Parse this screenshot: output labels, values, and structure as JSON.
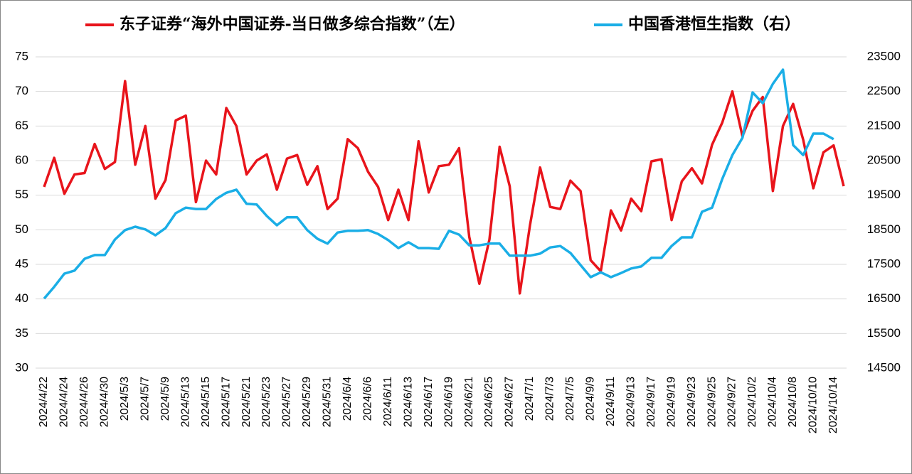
{
  "chart_data": {
    "type": "line",
    "categories": [
      "2024/4/22",
      null,
      "2024/4/24",
      null,
      "2024/4/26",
      null,
      "2024/4/30",
      null,
      "2024/5/3",
      null,
      "2024/5/7",
      null,
      "2024/5/9",
      null,
      "2024/5/13",
      null,
      "2024/5/15",
      null,
      "2024/5/17",
      null,
      "2024/5/21",
      null,
      "2024/5/23",
      null,
      "2024/5/27",
      null,
      "2024/5/29",
      null,
      "2024/5/31",
      null,
      "2024/6/4",
      null,
      "2024/6/6",
      null,
      "2024/6/11",
      null,
      "2024/6/13",
      null,
      "2024/6/17",
      null,
      "2024/6/19",
      null,
      "2024/6/21",
      null,
      "2024/6/25",
      null,
      "2024/6/27",
      null,
      "2024/7/1",
      null,
      "2024/7/3",
      null,
      "2024/7/5",
      null,
      "2024/9/9",
      null,
      "2024/9/11",
      null,
      "2024/9/13",
      null,
      "2024/9/17",
      null,
      "2024/9/19",
      null,
      "2024/9/23",
      null,
      "2024/9/25",
      null,
      "2024/9/27",
      null,
      "2024/10/2",
      null,
      "2024/10/4",
      null,
      "2024/10/8",
      null,
      "2024/10/10",
      null,
      "2024/10/14",
      null
    ],
    "series": [
      {
        "name": "东子证券“海外中国证券-当日做多综合指数”（左）",
        "color": "#e8141b",
        "values": [
          56.2,
          60.4,
          55.2,
          58,
          58.2,
          62.4,
          58.8,
          59.8,
          71.5,
          59.4,
          65,
          54.5,
          57.2,
          65.8,
          66.5,
          54,
          60,
          58,
          67.6,
          65,
          58,
          60,
          60.9,
          55.8,
          60.3,
          60.8,
          56.5,
          59.2,
          53,
          54.5,
          63.1,
          61.8,
          58.4,
          56.2,
          51.4,
          55.8,
          51.4,
          62.8,
          55.4,
          59.2,
          59.4,
          61.8,
          49,
          42.2,
          48.6,
          62,
          56.3,
          40.8,
          50.6,
          59,
          53.3,
          53,
          57.1,
          55.6,
          45.6,
          44,
          52.8,
          49.9,
          54.5,
          52.7,
          59.9,
          60.2,
          51.4,
          57,
          58.9,
          56.7,
          62.3,
          65.5,
          70,
          63.5,
          67.2,
          69.2,
          55.6,
          65,
          68.2,
          63,
          56,
          61.2,
          62.2,
          56.3
        ]
      },
      {
        "name": "中国香港恒生指数（右）",
        "color": "#1aaee6",
        "axis": "y2",
        "values": [
          16510,
          16850,
          17230,
          17320,
          17660,
          17770,
          17770,
          18220,
          18490,
          18590,
          18510,
          18340,
          18550,
          18980,
          19140,
          19100,
          19100,
          19390,
          19570,
          19660,
          19250,
          19230,
          18900,
          18630,
          18860,
          18860,
          18490,
          18240,
          18100,
          18420,
          18470,
          18470,
          18490,
          18380,
          18200,
          17970,
          18140,
          17970,
          17970,
          17950,
          18470,
          18360,
          18050,
          18050,
          18100,
          18100,
          17750,
          17750,
          17750,
          17810,
          17990,
          18030,
          17830,
          17480,
          17130,
          17270,
          17130,
          17250,
          17380,
          17440,
          17690,
          17690,
          18030,
          18280,
          18280,
          19020,
          19140,
          19970,
          20660,
          21160,
          22470,
          22160,
          22720,
          23130,
          20950,
          20660,
          21280,
          21280,
          21120,
          null
        ]
      }
    ],
    "ylim": [
      30,
      75
    ],
    "yticks": [
      30,
      35,
      40,
      45,
      50,
      55,
      60,
      65,
      70,
      75
    ],
    "y2lim": [
      14500,
      23500
    ],
    "y2ticks": [
      14500,
      15500,
      16500,
      17500,
      18500,
      19500,
      20500,
      21500,
      22500,
      23500
    ],
    "grid": true,
    "legend": "top"
  }
}
